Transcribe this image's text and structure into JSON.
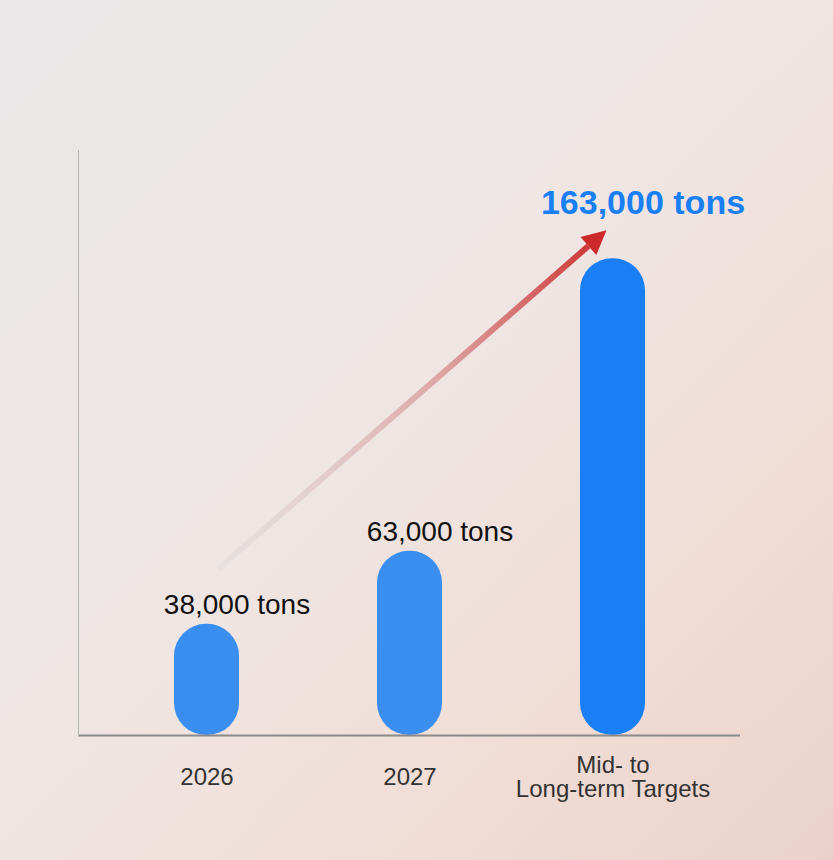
{
  "chart_data": {
    "type": "bar",
    "categories": [
      "2026",
      "2027",
      "Mid- to\nLong-term Targets"
    ],
    "values": [
      38000,
      63000,
      163000
    ],
    "value_labels": [
      "38,000 tons",
      "63,000 tons",
      "163,000 tons"
    ],
    "colors": [
      "#3a8ef0",
      "#3a8ef0",
      "#1a7ff5"
    ],
    "ylim": [
      0,
      200000
    ],
    "yticks": [],
    "data_labels": true,
    "tick_labels": "x",
    "grid": false
  }
}
